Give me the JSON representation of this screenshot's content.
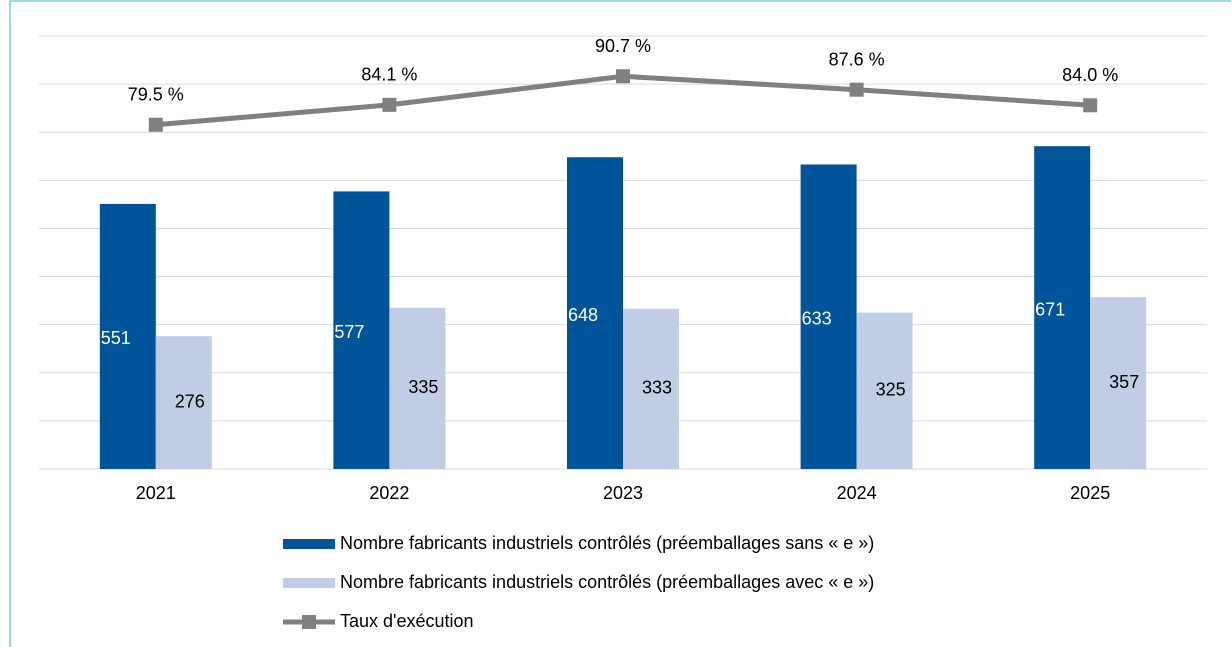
{
  "chart_data": {
    "type": "bar_line",
    "categories": [
      "2021",
      "2022",
      "2023",
      "2024",
      "2025"
    ],
    "series": [
      {
        "name": "Nombre fabricants industriels contrôlés (préemballages sans « e »)",
        "color": "#00559a",
        "values": [
          551,
          577,
          648,
          633,
          671
        ]
      },
      {
        "name": "Nombre fabricants industriels contrôlés (préemballages avec « e »)",
        "color": "#c0cde4",
        "values": [
          276,
          335,
          333,
          325,
          357
        ]
      },
      {
        "name": "Taux d'exécution",
        "color": "#808080",
        "axis": "y2",
        "type": "line",
        "values": [
          79.5,
          84.1,
          90.7,
          87.6,
          84.0
        ],
        "value_labels": [
          "79.5 %",
          "84.1 %",
          "90.7 %",
          "87.6 %",
          "84.0 %"
        ]
      }
    ],
    "ylim": [
      0,
      900
    ],
    "yticks": [
      0,
      100,
      200,
      300,
      400,
      500,
      600,
      700,
      800,
      900
    ],
    "y2lim": [
      0,
      100
    ],
    "grid": true
  }
}
